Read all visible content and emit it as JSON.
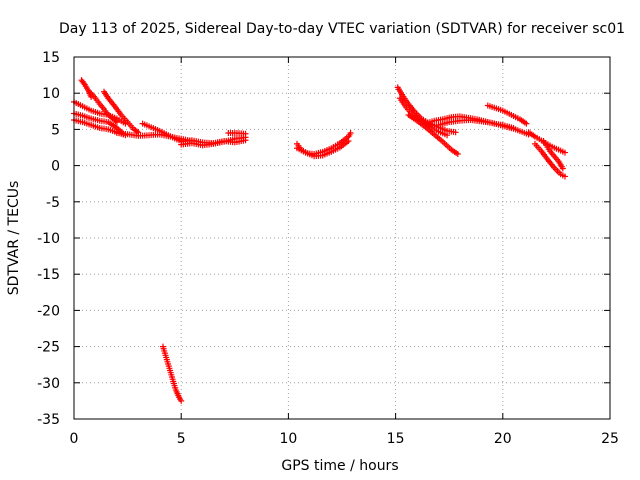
{
  "chart_data": {
    "type": "scatter",
    "title": "Day 113 of 2025, Sidereal Day-to-day VTEC variation (SDTVAR) for receiver sc01",
    "xlabel": "GPS time / hours",
    "ylabel": "SDTVAR / TECUs",
    "xlim": [
      0,
      25
    ],
    "ylim": [
      -35,
      15
    ],
    "xticks": [
      0,
      5,
      10,
      15,
      20,
      25
    ],
    "yticks": [
      15,
      10,
      5,
      0,
      -5,
      -10,
      -15,
      -20,
      -25,
      -30,
      -35
    ],
    "grid": true,
    "marker": "plus",
    "series": [
      {
        "name": "sdtvar",
        "color": "#ff0000",
        "tracks": [
          [
            [
              0,
              8.8
            ],
            [
              0.4,
              8.2
            ],
            [
              0.8,
              7.6
            ],
            [
              1.2,
              7.2
            ],
            [
              1.6,
              7.0
            ],
            [
              2.0,
              6.5
            ],
            [
              2.4,
              5.8
            ]
          ],
          [
            [
              0,
              7.2
            ],
            [
              0.4,
              6.9
            ],
            [
              0.8,
              6.5
            ],
            [
              1.2,
              6.2
            ],
            [
              1.6,
              6.0
            ],
            [
              2.0,
              5.2
            ],
            [
              2.3,
              4.4
            ]
          ],
          [
            [
              0,
              6.3
            ],
            [
              0.4,
              6.0
            ],
            [
              0.8,
              5.6
            ],
            [
              1.2,
              5.2
            ],
            [
              1.6,
              5.0
            ],
            [
              2.0,
              4.6
            ],
            [
              2.4,
              4.2
            ]
          ],
          [
            [
              0.35,
              11.8
            ],
            [
              0.5,
              11.2
            ],
            [
              0.7,
              10.2
            ],
            [
              0.8,
              9.5
            ]
          ],
          [
            [
              0.8,
              10.0
            ],
            [
              1.0,
              9.3
            ],
            [
              1.2,
              8.5
            ],
            [
              1.4,
              7.8
            ],
            [
              1.6,
              7.0
            ],
            [
              1.8,
              6.5
            ],
            [
              2.0,
              6.0
            ]
          ],
          [
            [
              1.4,
              10.2
            ],
            [
              1.6,
              9.3
            ],
            [
              1.9,
              8.2
            ],
            [
              2.2,
              7.0
            ],
            [
              2.5,
              6.0
            ],
            [
              2.8,
              5.0
            ],
            [
              3.0,
              4.6
            ]
          ],
          [
            [
              2.0,
              4.5
            ],
            [
              2.6,
              4.3
            ],
            [
              3.0,
              4.1
            ],
            [
              3.5,
              4.2
            ],
            [
              4.0,
              4.3
            ],
            [
              4.5,
              4.0
            ],
            [
              5.0,
              3.7
            ],
            [
              5.5,
              3.4
            ]
          ],
          [
            [
              3.2,
              5.8
            ],
            [
              3.6,
              5.3
            ],
            [
              4.0,
              4.8
            ],
            [
              4.4,
              4.2
            ],
            [
              4.8,
              3.6
            ],
            [
              5.0,
              3.4
            ]
          ],
          [
            [
              5.0,
              2.9
            ],
            [
              5.5,
              3.1
            ],
            [
              6.0,
              2.8
            ],
            [
              6.5,
              3.0
            ],
            [
              7.0,
              3.3
            ],
            [
              7.5,
              3.7
            ],
            [
              8.0,
              3.9
            ]
          ],
          [
            [
              5.0,
              3.3
            ],
            [
              5.5,
              3.5
            ],
            [
              6.0,
              3.2
            ],
            [
              6.5,
              3.1
            ],
            [
              7.0,
              3.4
            ],
            [
              7.5,
              3.2
            ],
            [
              8.0,
              3.5
            ]
          ],
          [
            [
              7.2,
              4.5
            ],
            [
              7.6,
              4.5
            ],
            [
              8.0,
              4.4
            ]
          ],
          [
            [
              10.4,
              3.0
            ],
            [
              10.6,
              2.2
            ],
            [
              10.9,
              1.7
            ],
            [
              11.2,
              1.6
            ],
            [
              11.6,
              1.9
            ],
            [
              12.0,
              2.4
            ],
            [
              12.4,
              3.1
            ],
            [
              12.8,
              4.0
            ],
            [
              12.9,
              4.5
            ]
          ],
          [
            [
              10.4,
              2.4
            ],
            [
              10.8,
              1.8
            ],
            [
              11.2,
              1.3
            ],
            [
              11.6,
              1.4
            ],
            [
              12.0,
              1.9
            ],
            [
              12.4,
              2.5
            ],
            [
              12.8,
              3.4
            ]
          ],
          [
            [
              15.1,
              10.8
            ],
            [
              15.3,
              9.8
            ],
            [
              15.6,
              8.5
            ],
            [
              15.9,
              7.4
            ],
            [
              16.2,
              6.5
            ],
            [
              16.6,
              5.8
            ],
            [
              17.0,
              5.3
            ],
            [
              17.4,
              4.8
            ],
            [
              17.8,
              4.6
            ]
          ],
          [
            [
              15.2,
              9.3
            ],
            [
              15.5,
              8.0
            ],
            [
              15.8,
              7.0
            ],
            [
              16.2,
              6.2
            ],
            [
              16.6,
              5.4
            ],
            [
              17.0,
              4.7
            ],
            [
              17.4,
              4.2
            ]
          ],
          [
            [
              15.6,
              7.0
            ],
            [
              16.0,
              6.2
            ],
            [
              16.4,
              5.3
            ],
            [
              16.8,
              4.3
            ],
            [
              17.2,
              3.3
            ],
            [
              17.6,
              2.2
            ],
            [
              17.9,
              1.6
            ]
          ],
          [
            [
              16.4,
              5.8
            ],
            [
              16.8,
              6.2
            ],
            [
              17.2,
              6.4
            ],
            [
              17.6,
              6.7
            ],
            [
              18.0,
              6.8
            ],
            [
              18.4,
              6.6
            ],
            [
              18.8,
              6.4
            ],
            [
              19.2,
              6.1
            ],
            [
              19.6,
              5.8
            ],
            [
              20.0,
              5.6
            ],
            [
              20.5,
              5.2
            ]
          ],
          [
            [
              17.0,
              5.6
            ],
            [
              17.5,
              6.0
            ],
            [
              18.0,
              6.2
            ],
            [
              18.5,
              6.3
            ],
            [
              19.0,
              6.1
            ],
            [
              19.5,
              5.9
            ],
            [
              20.0,
              5.5
            ],
            [
              20.6,
              5.0
            ],
            [
              21.2,
              4.3
            ]
          ],
          [
            [
              19.3,
              8.3
            ],
            [
              19.6,
              8.0
            ],
            [
              20.0,
              7.6
            ],
            [
              20.4,
              7.0
            ],
            [
              20.8,
              6.4
            ],
            [
              21.1,
              5.8
            ]
          ],
          [
            [
              21.2,
              4.6
            ],
            [
              21.5,
              4.0
            ],
            [
              21.9,
              3.3
            ],
            [
              22.3,
              2.6
            ],
            [
              22.6,
              2.2
            ],
            [
              22.9,
              1.8
            ]
          ],
          [
            [
              21.5,
              3.0
            ],
            [
              21.8,
              2.0
            ],
            [
              22.1,
              0.8
            ],
            [
              22.4,
              -0.3
            ],
            [
              22.7,
              -1.2
            ],
            [
              22.9,
              -1.5
            ]
          ],
          [
            [
              21.9,
              3.4
            ],
            [
              22.2,
              2.0
            ],
            [
              22.6,
              0.6
            ],
            [
              22.8,
              -0.4
            ]
          ],
          [
            [
              4.15,
              -25.0
            ],
            [
              4.3,
              -26.5
            ],
            [
              4.45,
              -28.0
            ],
            [
              4.6,
              -29.5
            ],
            [
              4.75,
              -31.0
            ],
            [
              4.9,
              -32.0
            ],
            [
              5.0,
              -32.5
            ]
          ]
        ]
      }
    ]
  }
}
